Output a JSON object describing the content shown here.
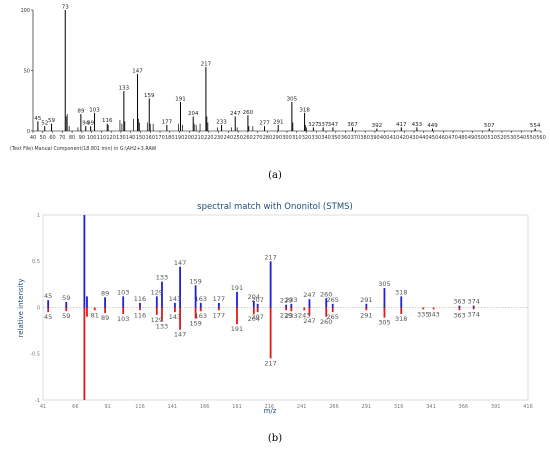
{
  "chart_data": [
    {
      "type": "bar",
      "panel_label": "(a)",
      "footer": "(Text File) Manual Component(18.801 min) in G:\\AH2+3.RAW",
      "xlim": [
        40,
        560
      ],
      "ylim": [
        0,
        100
      ],
      "x_ticks": [
        40,
        50,
        60,
        70,
        80,
        90,
        100,
        110,
        120,
        130,
        140,
        150,
        160,
        170,
        180,
        190,
        200,
        210,
        220,
        230,
        240,
        250,
        260,
        270,
        280,
        290,
        300,
        310,
        320,
        330,
        340,
        350,
        360,
        370,
        380,
        390,
        400,
        410,
        420,
        430,
        440,
        450,
        460,
        470,
        480,
        490,
        500,
        510,
        520,
        530,
        540,
        550,
        560
      ],
      "y_ticks": [
        0,
        50,
        100
      ],
      "peaks": [
        {
          "mz": 45,
          "i": 8,
          "label": "45"
        },
        {
          "mz": 52,
          "i": 4,
          "label": "52"
        },
        {
          "mz": 59,
          "i": 6,
          "label": "59"
        },
        {
          "mz": 73,
          "i": 100,
          "label": "73"
        },
        {
          "mz": 89,
          "i": 14,
          "label": "89"
        },
        {
          "mz": 94,
          "i": 4,
          "label": "94"
        },
        {
          "mz": 99,
          "i": 4,
          "label": "99"
        },
        {
          "mz": 103,
          "i": 15,
          "label": "103"
        },
        {
          "mz": 116,
          "i": 6,
          "label": "116"
        },
        {
          "mz": 133,
          "i": 33,
          "label": "133"
        },
        {
          "mz": 147,
          "i": 47,
          "label": "147"
        },
        {
          "mz": 159,
          "i": 27,
          "label": "159"
        },
        {
          "mz": 177,
          "i": 5,
          "label": "177"
        },
        {
          "mz": 191,
          "i": 24,
          "label": "191"
        },
        {
          "mz": 204,
          "i": 12,
          "label": "204"
        },
        {
          "mz": 217,
          "i": 53,
          "label": "217"
        },
        {
          "mz": 233,
          "i": 5,
          "label": "233"
        },
        {
          "mz": 247,
          "i": 12,
          "label": "247"
        },
        {
          "mz": 260,
          "i": 13,
          "label": "260"
        },
        {
          "mz": 277,
          "i": 4,
          "label": "277"
        },
        {
          "mz": 291,
          "i": 5,
          "label": "291"
        },
        {
          "mz": 305,
          "i": 24,
          "label": "305"
        },
        {
          "mz": 318,
          "i": 15,
          "label": "318"
        },
        {
          "mz": 327,
          "i": 3,
          "label": "327"
        },
        {
          "mz": 337,
          "i": 3,
          "label": "337"
        },
        {
          "mz": 347,
          "i": 3,
          "label": "347"
        },
        {
          "mz": 367,
          "i": 3,
          "label": "367"
        },
        {
          "mz": 392,
          "i": 2,
          "label": "392"
        },
        {
          "mz": 417,
          "i": 3,
          "label": "417"
        },
        {
          "mz": 433,
          "i": 3,
          "label": "433"
        },
        {
          "mz": 449,
          "i": 2,
          "label": "449"
        },
        {
          "mz": 507,
          "i": 2,
          "label": "507"
        },
        {
          "mz": 554,
          "i": 2,
          "label": "554"
        }
      ],
      "minor_peaks": [
        {
          "mz": 74,
          "i": 12
        },
        {
          "mz": 75,
          "i": 14
        },
        {
          "mz": 77,
          "i": 4
        },
        {
          "mz": 86,
          "i": 3
        },
        {
          "mz": 117,
          "i": 5
        },
        {
          "mz": 129,
          "i": 9
        },
        {
          "mz": 131,
          "i": 6
        },
        {
          "mz": 134,
          "i": 8
        },
        {
          "mz": 143,
          "i": 10
        },
        {
          "mz": 148,
          "i": 10
        },
        {
          "mz": 149,
          "i": 7
        },
        {
          "mz": 157,
          "i": 7
        },
        {
          "mz": 160,
          "i": 6
        },
        {
          "mz": 163,
          "i": 6
        },
        {
          "mz": 189,
          "i": 6
        },
        {
          "mz": 193,
          "i": 5
        },
        {
          "mz": 205,
          "i": 6
        },
        {
          "mz": 207,
          "i": 5
        },
        {
          "mz": 211,
          "i": 6
        },
        {
          "mz": 218,
          "i": 12
        },
        {
          "mz": 219,
          "i": 7
        },
        {
          "mz": 229,
          "i": 3
        },
        {
          "mz": 243,
          "i": 3
        },
        {
          "mz": 249,
          "i": 3
        },
        {
          "mz": 261,
          "i": 4
        },
        {
          "mz": 265,
          "i": 4
        },
        {
          "mz": 306,
          "i": 7
        },
        {
          "mz": 319,
          "i": 5
        },
        {
          "mz": 320,
          "i": 3
        }
      ]
    },
    {
      "type": "bar",
      "panel_label": "(b)",
      "title": "spectral match with Ononitol (STMS)",
      "xlabel": "m/z",
      "ylabel": "relative intensity",
      "xlim": [
        41,
        416
      ],
      "ylim": [
        -1,
        1
      ],
      "x_ticks": [
        41,
        66,
        91,
        116,
        141,
        166,
        191,
        216,
        241,
        266,
        291,
        316,
        341,
        366,
        391,
        416
      ],
      "y_ticks": [
        {
          "v": 1,
          "label": "1"
        },
        {
          "v": 0.5,
          "label": "0.5"
        },
        {
          "v": 0,
          "label": "0"
        },
        {
          "v": -0.5,
          "label": "-0.5"
        },
        {
          "v": -1,
          "label": "-1"
        }
      ],
      "series": [
        {
          "name": "",
          "color": "#1f1fd6",
          "peaks": [
            {
              "mz": 45,
              "i": 0.08,
              "label": "45"
            },
            {
              "mz": 59,
              "i": 0.06,
              "label": "59"
            },
            {
              "mz": 73,
              "i": 1.0,
              "label": ""
            },
            {
              "mz": 75,
              "i": 0.12,
              "label": ""
            },
            {
              "mz": 89,
              "i": 0.11,
              "label": "89"
            },
            {
              "mz": 103,
              "i": 0.12,
              "label": "103"
            },
            {
              "mz": 116,
              "i": 0.05,
              "label": "116"
            },
            {
              "mz": 129,
              "i": 0.12,
              "label": "129"
            },
            {
              "mz": 133,
              "i": 0.28,
              "label": "133"
            },
            {
              "mz": 143,
              "i": 0.05,
              "label": "143"
            },
            {
              "mz": 147,
              "i": 0.44,
              "label": "147"
            },
            {
              "mz": 159,
              "i": 0.24,
              "label": "159"
            },
            {
              "mz": 163,
              "i": 0.05,
              "label": "163"
            },
            {
              "mz": 177,
              "i": 0.05,
              "label": "177"
            },
            {
              "mz": 191,
              "i": 0.17,
              "label": "191"
            },
            {
              "mz": 204,
              "i": 0.07,
              "label": "204"
            },
            {
              "mz": 207,
              "i": 0.04,
              "label": "207"
            },
            {
              "mz": 217,
              "i": 0.5,
              "label": "217"
            },
            {
              "mz": 229,
              "i": 0.03,
              "label": "229"
            },
            {
              "mz": 233,
              "i": 0.04,
              "label": "233"
            },
            {
              "mz": 247,
              "i": 0.09,
              "label": "247"
            },
            {
              "mz": 260,
              "i": 0.1,
              "label": "260"
            },
            {
              "mz": 265,
              "i": 0.04,
              "label": "265"
            },
            {
              "mz": 291,
              "i": 0.04,
              "label": "291"
            },
            {
              "mz": 305,
              "i": 0.21,
              "label": "305"
            },
            {
              "mz": 318,
              "i": 0.12,
              "label": "318"
            },
            {
              "mz": 363,
              "i": 0.02,
              "label": "363"
            },
            {
              "mz": 374,
              "i": 0.02,
              "label": "374"
            }
          ]
        },
        {
          "name": "",
          "color": "#e01818",
          "peaks": [
            {
              "mz": 45,
              "i": -0.05,
              "label": "45"
            },
            {
              "mz": 59,
              "i": -0.04,
              "label": "59"
            },
            {
              "mz": 73,
              "i": -1.0,
              "label": ""
            },
            {
              "mz": 75,
              "i": -0.1,
              "label": ""
            },
            {
              "mz": 81,
              "i": -0.03,
              "label": "81"
            },
            {
              "mz": 89,
              "i": -0.06,
              "label": "89"
            },
            {
              "mz": 103,
              "i": -0.07,
              "label": "103"
            },
            {
              "mz": 116,
              "i": -0.03,
              "label": "116"
            },
            {
              "mz": 129,
              "i": -0.08,
              "label": "129"
            },
            {
              "mz": 133,
              "i": -0.15,
              "label": "133"
            },
            {
              "mz": 143,
              "i": -0.05,
              "label": "143"
            },
            {
              "mz": 147,
              "i": -0.24,
              "label": "147"
            },
            {
              "mz": 159,
              "i": -0.12,
              "label": "159"
            },
            {
              "mz": 163,
              "i": -0.04,
              "label": "163"
            },
            {
              "mz": 177,
              "i": -0.03,
              "label": "177"
            },
            {
              "mz": 191,
              "i": -0.18,
              "label": "191"
            },
            {
              "mz": 204,
              "i": -0.07,
              "label": "204"
            },
            {
              "mz": 207,
              "i": -0.05,
              "label": "207"
            },
            {
              "mz": 217,
              "i": -0.55,
              "label": "217"
            },
            {
              "mz": 229,
              "i": -0.03,
              "label": "229"
            },
            {
              "mz": 233,
              "i": -0.04,
              "label": "233"
            },
            {
              "mz": 243,
              "i": -0.03,
              "label": "243"
            },
            {
              "mz": 247,
              "i": -0.09,
              "label": "247"
            },
            {
              "mz": 260,
              "i": -0.1,
              "label": "260"
            },
            {
              "mz": 265,
              "i": -0.05,
              "label": "265"
            },
            {
              "mz": 291,
              "i": -0.03,
              "label": "291"
            },
            {
              "mz": 305,
              "i": -0.11,
              "label": "305"
            },
            {
              "mz": 318,
              "i": -0.07,
              "label": "318"
            },
            {
              "mz": 335,
              "i": -0.02,
              "label": "335"
            },
            {
              "mz": 343,
              "i": -0.02,
              "label": "343"
            },
            {
              "mz": 363,
              "i": -0.03,
              "label": "363"
            },
            {
              "mz": 374,
              "i": -0.02,
              "label": "374"
            }
          ]
        }
      ]
    }
  ]
}
